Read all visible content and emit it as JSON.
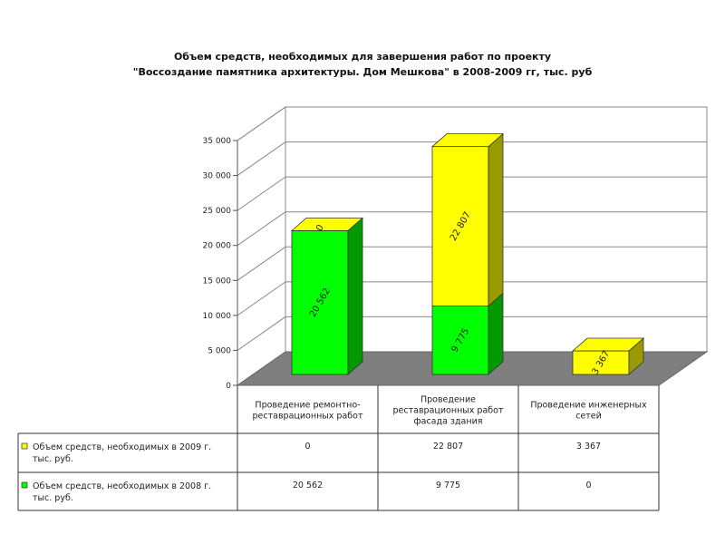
{
  "chart_data": {
    "type": "bar",
    "title": [
      "Объем средств, необходимых для завершения работ по проекту",
      "\"Воссоздание памятника архитектуры. Дом Мешкова\" в 2008-2009 гг, тыс. руб"
    ],
    "categories": [
      [
        "Проведение ремонтно-",
        "реставрационных работ"
      ],
      [
        "Проведение",
        "реставрационных работ",
        "фасада здания"
      ],
      [
        "Проведение инженерных",
        "сетей"
      ]
    ],
    "series": [
      {
        "name": [
          "Объем средств, необходимых в 2009 г.",
          "тыс. руб."
        ],
        "values": [
          0,
          22807,
          3367
        ],
        "labels": [
          "0",
          "22 807",
          "3 367"
        ],
        "color": "#ffff00",
        "side_color": "#999900"
      },
      {
        "name": [
          "Объем средств, необходимых в 2008 г.",
          "тыс. руб."
        ],
        "values": [
          20562,
          9775,
          0
        ],
        "labels": [
          "20 562",
          "9 775",
          "0"
        ],
        "color": "#00ff00",
        "side_color": "#009900"
      }
    ],
    "stacked": true,
    "ylim": [
      0,
      35000
    ],
    "y_ticks": [
      "0",
      "5 000",
      "10 000",
      "15 000",
      "20 000",
      "25 000",
      "30 000",
      "35 000"
    ],
    "grid": true,
    "data_table": true
  }
}
